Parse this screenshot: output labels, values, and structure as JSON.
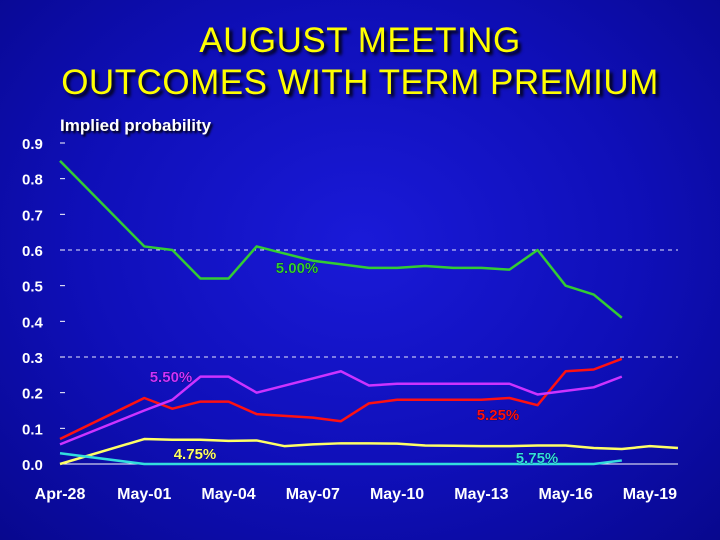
{
  "title": {
    "line1": "AUGUST MEETING",
    "line2": "OUTCOMES WITH TERM PREMIUM"
  },
  "chart_data": {
    "type": "line",
    "title": "AUGUST MEETING OUTCOMES WITH TERM PREMIUM",
    "ylabel": "Implied probability",
    "xlabel": "",
    "ylim": [
      0,
      0.9
    ],
    "y_ticks": [
      "0.0",
      "0.1",
      "0.2",
      "0.3",
      "0.4",
      "0.5",
      "0.6",
      "0.7",
      "0.8",
      "0.9"
    ],
    "x_ticks": [
      "Apr-28",
      "May-01",
      "May-04",
      "May-07",
      "May-10",
      "May-13",
      "May-16",
      "May-19"
    ],
    "dashed_gridlines": [
      0.3,
      0.6
    ],
    "x": [
      0,
      3,
      4,
      5,
      6,
      7,
      8,
      9,
      10,
      11,
      12,
      13,
      14,
      15,
      16,
      17,
      18,
      19,
      20,
      21,
      22
    ],
    "series": [
      {
        "name": "4.75%",
        "color": "#ffff66",
        "values": [
          0.0,
          0.07,
          0.068,
          0.068,
          0.065,
          0.066,
          0.05,
          0.055,
          0.058,
          0.058,
          0.057,
          0.052,
          0.051,
          0.05,
          0.05,
          0.052,
          0.052,
          0.045,
          0.042,
          0.05,
          0.045
        ]
      },
      {
        "name": "5.00%",
        "color": "#33cc33",
        "values": [
          0.85,
          0.61,
          0.6,
          0.52,
          0.52,
          0.61,
          0.59,
          0.57,
          0.56,
          0.55,
          0.55,
          0.555,
          0.55,
          0.55,
          0.545,
          0.6,
          0.5,
          0.475,
          0.41,
          null,
          null
        ]
      },
      {
        "name": "5.25%",
        "color": "#ff1111",
        "values": [
          0.07,
          0.185,
          0.155,
          0.175,
          0.175,
          0.14,
          0.135,
          0.13,
          0.12,
          0.17,
          0.18,
          0.18,
          0.18,
          0.18,
          0.185,
          0.165,
          0.26,
          0.265,
          0.295,
          null,
          null
        ]
      },
      {
        "name": "5.50%",
        "color": "#cc33ff",
        "values": [
          0.055,
          0.15,
          0.18,
          0.245,
          0.245,
          0.2,
          0.22,
          0.24,
          0.26,
          0.22,
          0.225,
          0.225,
          0.225,
          0.225,
          0.225,
          0.195,
          0.205,
          0.215,
          0.245,
          null,
          null
        ]
      },
      {
        "name": "5.75%",
        "color": "#33dddd",
        "values": [
          0.03,
          0.0,
          0.0,
          0.0,
          0.0,
          0.0,
          0.0,
          0.0,
          0.0,
          0.0,
          0.0,
          0.0,
          0.0,
          0.0,
          0.0,
          0.0,
          0.0,
          0.0,
          0.01,
          null,
          null
        ]
      }
    ]
  }
}
